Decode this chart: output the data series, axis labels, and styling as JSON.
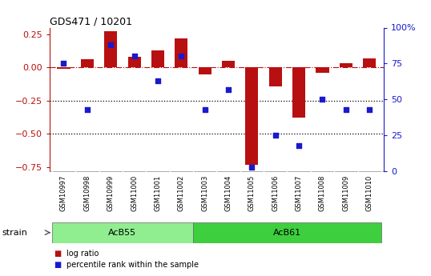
{
  "title": "GDS471 / 10201",
  "samples": [
    "GSM10997",
    "GSM10998",
    "GSM10999",
    "GSM11000",
    "GSM11001",
    "GSM11002",
    "GSM11003",
    "GSM11004",
    "GSM11005",
    "GSM11006",
    "GSM11007",
    "GSM11008",
    "GSM11009",
    "GSM11010"
  ],
  "log_ratio": [
    -0.01,
    0.06,
    0.27,
    0.08,
    0.13,
    0.22,
    -0.05,
    0.05,
    -0.73,
    -0.14,
    -0.38,
    -0.04,
    0.03,
    0.07
  ],
  "percentile": [
    75,
    43,
    88,
    80,
    63,
    80,
    43,
    57,
    3,
    25,
    18,
    50,
    43,
    43
  ],
  "groups": [
    {
      "label": "AcB55",
      "start": 0,
      "end": 5,
      "color": "#90ee90"
    },
    {
      "label": "AcB61",
      "start": 6,
      "end": 13,
      "color": "#3ecf3e"
    }
  ],
  "bar_color": "#b81010",
  "dot_color": "#1a1acc",
  "ylim_left": [
    -0.78,
    0.3
  ],
  "ylim_right": [
    0,
    100
  ],
  "dotted_lines": [
    -0.25,
    -0.5
  ],
  "right_ticks": [
    0,
    25,
    50,
    75,
    100
  ],
  "right_tick_labels": [
    "0",
    "25",
    "50",
    "75",
    "100%"
  ],
  "left_ticks": [
    -0.75,
    -0.5,
    -0.25,
    0,
    0.25
  ],
  "background_color": "#ffffff",
  "sample_bg": "#c8c8c8",
  "legend_items": [
    {
      "label": "log ratio",
      "color": "#b81010"
    },
    {
      "label": "percentile rank within the sample",
      "color": "#1a1acc"
    }
  ],
  "strain_label": "strain",
  "dot_size": 22,
  "bar_width": 0.55
}
